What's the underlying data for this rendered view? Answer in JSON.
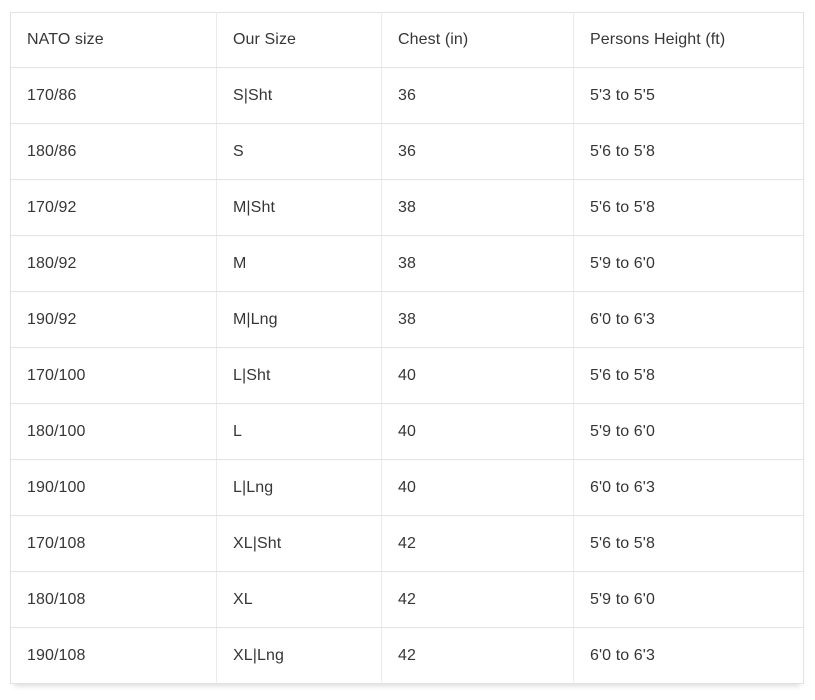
{
  "table": {
    "columns": [
      "NATO size",
      "Our Size",
      "Chest (in)",
      "Persons Height (ft)"
    ],
    "rows": [
      [
        "170/86",
        "S|Sht",
        "36",
        "5'3 to 5'5"
      ],
      [
        "180/86",
        "S",
        "36",
        "5'6 to 5'8"
      ],
      [
        "170/92",
        "M|Sht",
        "38",
        "5'6 to 5'8"
      ],
      [
        "180/92",
        "M",
        "38",
        "5'9 to 6'0"
      ],
      [
        "190/92",
        "M|Lng",
        "38",
        "6'0 to 6'3"
      ],
      [
        "170/100",
        "L|Sht",
        "40",
        "5'6 to 5'8"
      ],
      [
        "180/100",
        "L",
        "40",
        "5'9 to 6'0"
      ],
      [
        "190/100",
        "L|Lng",
        "40",
        "6'0 to 6'3"
      ],
      [
        "170/108",
        "XL|Sht",
        "42",
        "5'6 to 5'8"
      ],
      [
        "180/108",
        "XL",
        "42",
        "5'9 to 6'0"
      ],
      [
        "190/108",
        "XL|Lng",
        "42",
        "6'0 to 6'3"
      ]
    ]
  }
}
